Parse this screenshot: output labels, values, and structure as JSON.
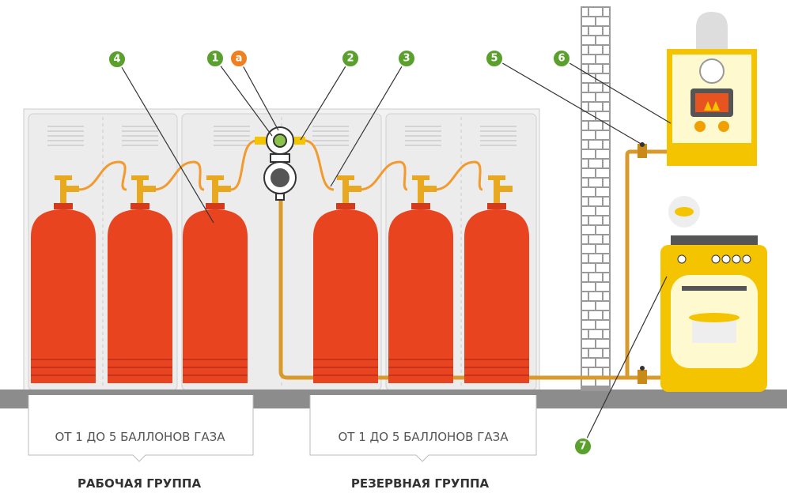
{
  "markers": [
    {
      "label": "4"
    },
    {
      "label": "1"
    },
    {
      "label": "а"
    },
    {
      "label": "2"
    },
    {
      "label": "3"
    },
    {
      "label": "5"
    },
    {
      "label": "6"
    },
    {
      "label": "7"
    }
  ],
  "groups": [
    {
      "caption": "ОТ 1 ДО 5 БАЛЛОНОВ ГАЗА",
      "title": "РАБОЧАЯ ГРУППА"
    },
    {
      "caption": "ОТ 1 ДО 5 БАЛЛОНОВ ГАЗА",
      "title": "РЕЗЕРВНАЯ ГРУППА"
    }
  ]
}
